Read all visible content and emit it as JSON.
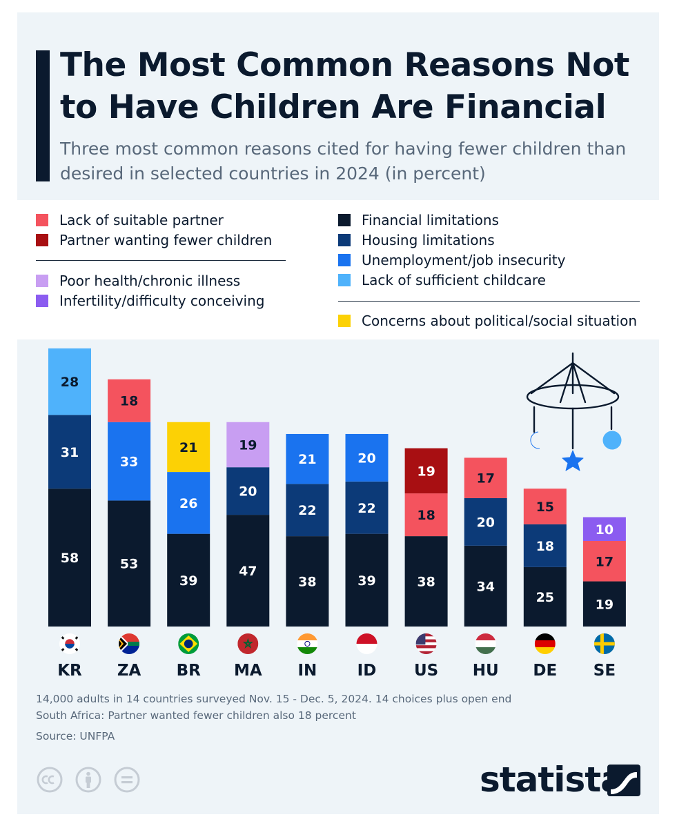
{
  "title": "The Most Common Reasons Not to Have Children Are Financial",
  "subtitle": "Three most common reasons cited for having fewer children than desired in selected countries in 2024 (in percent)",
  "legend": {
    "left": [
      {
        "key": "partner",
        "label": "Lack of suitable partner",
        "color": "#f4535e"
      },
      {
        "key": "partner_fewer",
        "label": "Partner wanting fewer children",
        "color": "#a80f12"
      },
      {
        "key": "health",
        "label": "Poor health/chronic illness",
        "color": "#c89ef2"
      },
      {
        "key": "infertility",
        "label": "Infertility/difficulty conceiving",
        "color": "#8b5cf0"
      }
    ],
    "right": [
      {
        "key": "financial",
        "label": "Financial limitations",
        "color": "#0b1a2e"
      },
      {
        "key": "housing",
        "label": "Housing limitations",
        "color": "#0c3a78"
      },
      {
        "key": "unemployment",
        "label": "Unemployment/job insecurity",
        "color": "#1a73ef"
      },
      {
        "key": "childcare",
        "label": "Lack of sufficient childcare",
        "color": "#4fb2fb"
      },
      {
        "key": "political",
        "label": "Concerns about political/social situation",
        "color": "#fcd105"
      }
    ]
  },
  "chart_data": {
    "type": "bar",
    "stacked": true,
    "categories": [
      "KR",
      "ZA",
      "BR",
      "MA",
      "IN",
      "ID",
      "US",
      "HU",
      "DE",
      "SE"
    ],
    "bars": [
      {
        "country": "KR",
        "flag": "south-korea-flag",
        "segments": [
          {
            "key": "financial",
            "value": 58
          },
          {
            "key": "housing",
            "value": 31
          },
          {
            "key": "childcare",
            "value": 28
          }
        ]
      },
      {
        "country": "ZA",
        "flag": "south-africa-flag",
        "segments": [
          {
            "key": "financial",
            "value": 53
          },
          {
            "key": "unemployment",
            "value": 33
          },
          {
            "key": "partner",
            "value": 18
          }
        ]
      },
      {
        "country": "BR",
        "flag": "brazil-flag",
        "segments": [
          {
            "key": "financial",
            "value": 39
          },
          {
            "key": "unemployment",
            "value": 26
          },
          {
            "key": "political",
            "value": 21
          }
        ]
      },
      {
        "country": "MA",
        "flag": "morocco-flag",
        "segments": [
          {
            "key": "financial",
            "value": 47
          },
          {
            "key": "housing",
            "value": 20
          },
          {
            "key": "health",
            "value": 19
          }
        ]
      },
      {
        "country": "IN",
        "flag": "india-flag",
        "segments": [
          {
            "key": "financial",
            "value": 38
          },
          {
            "key": "housing",
            "value": 22
          },
          {
            "key": "unemployment",
            "value": 21
          }
        ]
      },
      {
        "country": "ID",
        "flag": "indonesia-flag",
        "segments": [
          {
            "key": "financial",
            "value": 39
          },
          {
            "key": "housing",
            "value": 22
          },
          {
            "key": "unemployment",
            "value": 20
          }
        ]
      },
      {
        "country": "US",
        "flag": "united-states-flag",
        "segments": [
          {
            "key": "financial",
            "value": 38
          },
          {
            "key": "partner",
            "value": 18
          },
          {
            "key": "partner_fewer",
            "value": 19
          }
        ]
      },
      {
        "country": "HU",
        "flag": "hungary-flag",
        "segments": [
          {
            "key": "financial",
            "value": 34
          },
          {
            "key": "housing",
            "value": 20
          },
          {
            "key": "partner",
            "value": 17
          }
        ]
      },
      {
        "country": "DE",
        "flag": "germany-flag",
        "segments": [
          {
            "key": "financial",
            "value": 25
          },
          {
            "key": "housing",
            "value": 18
          },
          {
            "key": "partner",
            "value": 15
          }
        ]
      },
      {
        "country": "SE",
        "flag": "sweden-flag",
        "segments": [
          {
            "key": "financial",
            "value": 19
          },
          {
            "key": "partner",
            "value": 17
          },
          {
            "key": "infertility",
            "value": 10
          }
        ]
      }
    ]
  },
  "footnotes": [
    "14,000 adults in 14 countries surveyed Nov. 15 - Dec. 5, 2024. 14 choices plus open end",
    "South Africa: Partner wanted fewer children also 18 percent"
  ],
  "source": "Source: UNFPA",
  "brand": "statista",
  "icons": {
    "decoration": "baby-mobile-icon",
    "license": [
      "creative-commons-icon",
      "attribution-icon",
      "no-derivatives-icon"
    ]
  }
}
